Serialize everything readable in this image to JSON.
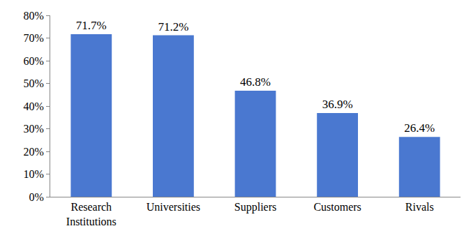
{
  "chart_data": {
    "type": "bar",
    "categories": [
      "Research Institutions",
      "Universities",
      "Suppliers",
      "Customers",
      "Rivals"
    ],
    "values": [
      71.7,
      71.2,
      46.8,
      36.9,
      26.4
    ],
    "value_labels": [
      "71.7%",
      "71.2%",
      "46.8%",
      "36.9%",
      "26.4%"
    ],
    "color": "#4a78d0",
    "ylim": [
      0,
      80
    ],
    "yticks": [
      {
        "value": 0,
        "label": "0%"
      },
      {
        "value": 10,
        "label": "10%"
      },
      {
        "value": 20,
        "label": "20%"
      },
      {
        "value": 30,
        "label": "30%"
      },
      {
        "value": 40,
        "label": "40%"
      },
      {
        "value": 50,
        "label": "50%"
      },
      {
        "value": 60,
        "label": "60%"
      },
      {
        "value": 70,
        "label": "70%"
      },
      {
        "value": 80,
        "label": "80%"
      }
    ],
    "grid": false,
    "data_labels": true
  }
}
